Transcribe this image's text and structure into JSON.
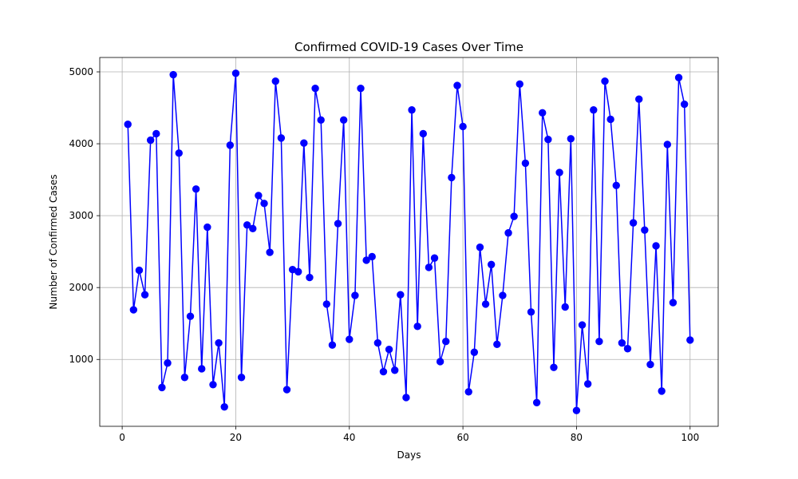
{
  "chart_data": {
    "type": "line",
    "title": "Confirmed COVID-19 Cases Over Time",
    "xlabel": "Days",
    "ylabel": "Number of Confirmed Cases",
    "xlim": [
      -3.95,
      104.95
    ],
    "ylim": [
      70,
      5200
    ],
    "x_ticks": [
      0,
      20,
      40,
      60,
      80,
      100
    ],
    "y_ticks": [
      1000,
      2000,
      3000,
      4000,
      5000
    ],
    "grid": true,
    "series": [
      {
        "color": "#0000ff",
        "marker": "circle",
        "x": [
          1,
          2,
          3,
          4,
          5,
          6,
          7,
          8,
          9,
          10,
          11,
          12,
          13,
          14,
          15,
          16,
          17,
          18,
          19,
          20,
          21,
          22,
          23,
          24,
          25,
          26,
          27,
          28,
          29,
          30,
          31,
          32,
          33,
          34,
          35,
          36,
          37,
          38,
          39,
          40,
          41,
          42,
          43,
          44,
          45,
          46,
          47,
          48,
          49,
          50,
          51,
          52,
          53,
          54,
          55,
          56,
          57,
          58,
          59,
          60,
          61,
          62,
          63,
          64,
          65,
          66,
          67,
          68,
          69,
          70,
          71,
          72,
          73,
          74,
          75,
          76,
          77,
          78,
          79,
          80,
          81,
          82,
          83,
          84,
          85,
          86,
          87,
          88,
          89,
          90,
          91,
          92,
          93,
          94,
          95,
          96,
          97,
          98,
          99,
          100
        ],
        "values": [
          4270,
          1690,
          2240,
          1900,
          4050,
          4140,
          610,
          950,
          4960,
          3870,
          750,
          1600,
          3370,
          870,
          2840,
          650,
          1230,
          340,
          3980,
          4980,
          750,
          2870,
          2820,
          3280,
          3170,
          2490,
          4870,
          4080,
          580,
          2250,
          2220,
          4010,
          2140,
          4770,
          4330,
          1770,
          1200,
          2890,
          4330,
          1280,
          1890,
          4770,
          2380,
          2430,
          1230,
          830,
          1140,
          850,
          1900,
          470,
          4470,
          1460,
          4140,
          2280,
          2410,
          970,
          1250,
          3530,
          4810,
          4240,
          550,
          1100,
          2560,
          1770,
          2320,
          1210,
          1890,
          2760,
          2990,
          4830,
          3730,
          1660,
          400,
          4430,
          4060,
          890,
          3600,
          1730,
          4070,
          290,
          1480,
          660,
          4470,
          1250,
          4870,
          4340,
          3420,
          1230,
          1150,
          2900,
          4620,
          2800,
          930,
          2580,
          560,
          3990,
          1790,
          4920,
          4550,
          1270
        ]
      }
    ]
  }
}
